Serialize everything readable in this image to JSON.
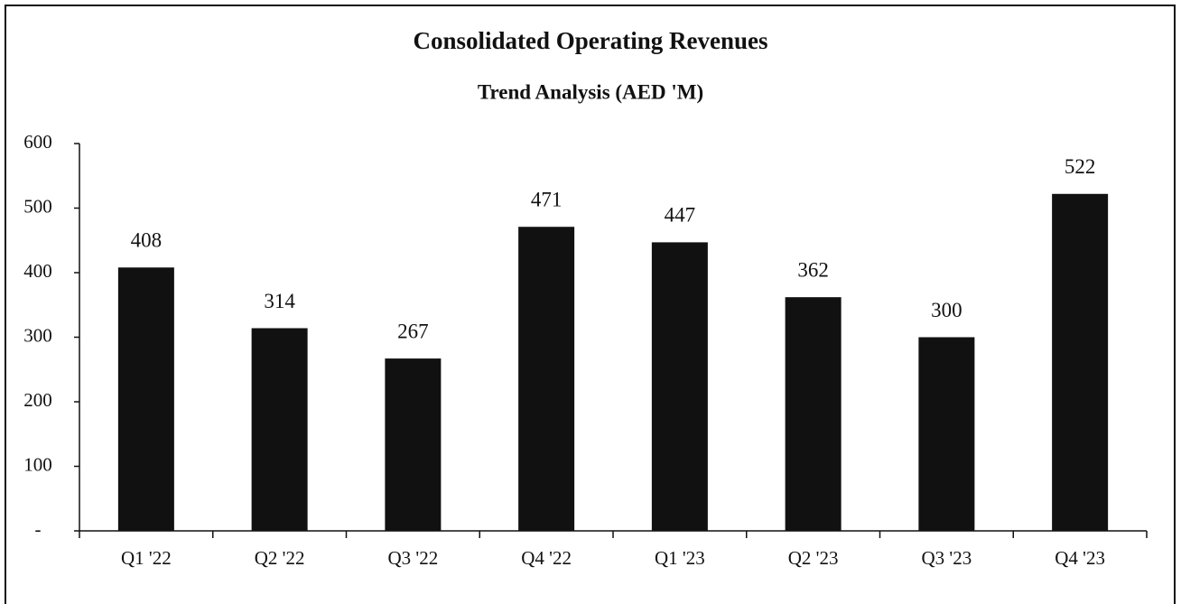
{
  "chart_data": {
    "type": "bar",
    "title": "Consolidated Operating Revenues",
    "subtitle": "Trend Analysis (AED 'M)",
    "categories": [
      "Q1 '22",
      "Q2 '22",
      "Q3 '22",
      "Q4 '22",
      "Q1 '23",
      "Q2 '23",
      "Q3 '23",
      "Q4 '23"
    ],
    "values": [
      408,
      314,
      267,
      471,
      447,
      362,
      300,
      522
    ],
    "color": "#111111",
    "ylim": [
      0,
      600
    ],
    "yticks": [
      {
        "value": 0,
        "label": "-"
      },
      100,
      200,
      300,
      400,
      500,
      600
    ],
    "grid": false
  }
}
